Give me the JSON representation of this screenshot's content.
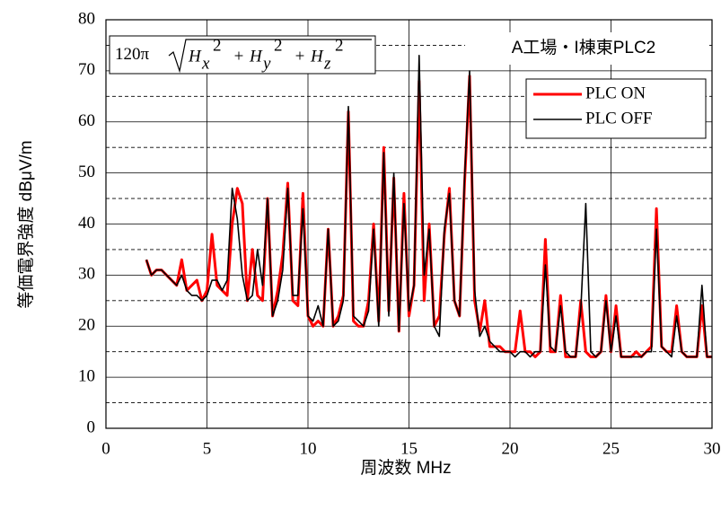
{
  "chart_data": {
    "type": "line",
    "title": "A工場・I棟東PLC2",
    "formula": {
      "coef": "120π",
      "op": "+",
      "terms": [
        {
          "base": "H",
          "sub": "x",
          "sup": "2"
        },
        {
          "base": "H",
          "sub": "y",
          "sup": "2"
        },
        {
          "base": "H",
          "sub": "z",
          "sup": "2"
        }
      ]
    },
    "xlabel": "周波数 MHz",
    "ylabel": "等価電界強度 dBμV/m",
    "xlim": [
      0,
      30
    ],
    "xticks": [
      0,
      5,
      10,
      15,
      20,
      25,
      30
    ],
    "ylim": [
      0,
      80
    ],
    "yticks": [
      0,
      10,
      20,
      30,
      40,
      50,
      60,
      70,
      80
    ],
    "yminor": [
      5,
      15,
      25,
      35,
      45,
      55,
      65,
      75
    ],
    "grid": true,
    "legend": "upper right",
    "x": [
      2,
      2.25,
      2.5,
      2.75,
      3,
      3.25,
      3.5,
      3.75,
      4,
      4.25,
      4.5,
      4.75,
      5,
      5.25,
      5.5,
      5.75,
      6,
      6.25,
      6.5,
      6.75,
      7,
      7.25,
      7.5,
      7.75,
      8,
      8.25,
      8.5,
      8.75,
      9,
      9.25,
      9.5,
      9.75,
      10,
      10.25,
      10.5,
      10.75,
      11,
      11.25,
      11.5,
      11.75,
      12,
      12.25,
      12.5,
      12.75,
      13,
      13.25,
      13.5,
      13.75,
      14,
      14.25,
      14.5,
      14.75,
      15,
      15.25,
      15.5,
      15.75,
      16,
      16.25,
      16.5,
      16.75,
      17,
      17.25,
      17.5,
      17.75,
      18,
      18.25,
      18.5,
      18.75,
      19,
      19.25,
      19.5,
      19.75,
      20,
      20.25,
      20.5,
      20.75,
      21,
      21.25,
      21.5,
      21.75,
      22,
      22.25,
      22.5,
      22.75,
      23,
      23.25,
      23.5,
      23.75,
      24,
      24.25,
      24.5,
      24.75,
      25,
      25.25,
      25.5,
      25.75,
      26,
      26.25,
      26.5,
      26.75,
      27,
      27.25,
      27.5,
      27.75,
      28,
      28.25,
      28.5,
      28.75,
      29,
      29.25,
      29.5,
      29.75,
      30
    ],
    "series": [
      {
        "name": "PLC ON",
        "color": "#ff0000",
        "width": 3,
        "values": [
          33,
          30,
          31,
          31,
          30,
          29,
          28,
          33,
          27,
          28,
          29,
          25,
          27,
          38,
          28,
          27,
          26,
          40,
          47,
          44,
          25,
          35,
          26,
          25,
          45,
          22,
          27,
          34,
          48,
          25,
          24,
          46,
          22,
          20,
          21,
          20,
          39,
          20,
          22,
          26,
          62,
          21,
          20,
          20,
          25,
          40,
          21,
          55,
          23,
          49,
          19,
          46,
          22,
          28,
          68,
          25,
          40,
          20,
          22,
          38,
          47,
          25,
          22,
          48,
          69,
          25,
          19,
          25,
          16,
          16,
          16,
          15,
          15,
          15,
          23,
          15,
          15,
          14,
          15,
          37,
          15,
          15,
          26,
          14,
          14,
          14,
          25,
          15,
          14,
          14,
          15,
          26,
          15,
          24,
          14,
          14,
          14,
          15,
          14,
          15,
          16,
          43,
          16,
          15,
          15,
          24,
          15,
          14,
          14,
          14,
          24,
          14,
          14
        ]
      },
      {
        "name": "PLC OFF",
        "color": "#000000",
        "width": 1.6,
        "values": [
          33,
          30,
          31,
          31,
          30,
          29,
          28,
          30,
          27,
          26,
          26,
          25,
          26,
          29,
          29,
          27,
          29,
          47,
          41,
          30,
          25,
          26,
          35,
          28,
          45,
          22,
          25,
          31,
          47,
          26,
          26,
          43,
          22,
          21,
          24,
          20,
          39,
          20,
          21,
          25,
          63,
          22,
          21,
          20,
          23,
          39,
          20,
          54,
          22,
          50,
          19,
          44,
          23,
          28,
          73,
          30,
          39,
          20,
          18,
          39,
          46,
          25,
          22,
          49,
          70,
          27,
          18,
          20,
          17,
          16,
          15,
          15,
          15,
          14,
          15,
          15,
          14,
          15,
          15,
          32,
          16,
          15,
          24,
          15,
          14,
          14,
          23,
          44,
          15,
          14,
          15,
          25,
          15,
          22,
          14,
          14,
          14,
          14,
          14,
          15,
          15,
          39,
          16,
          15,
          14,
          22,
          15,
          14,
          14,
          14,
          28,
          14,
          14
        ]
      }
    ]
  }
}
